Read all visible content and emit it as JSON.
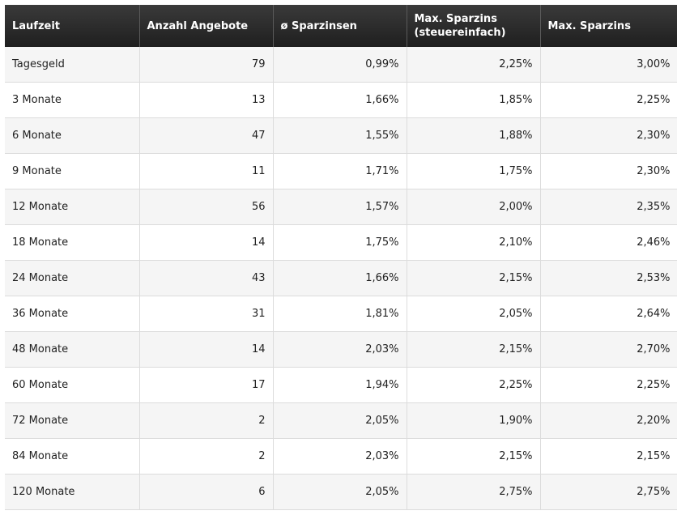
{
  "table": {
    "headers": {
      "laufzeit": "Laufzeit",
      "anzahl": "Anzahl Angebote",
      "avg": "ø Sparzinsen",
      "max_tax": "Max. Sparzins (steuereinfach)",
      "max": "Max. Sparzins"
    },
    "rows": [
      {
        "laufzeit": "Tagesgeld",
        "anzahl": "79",
        "avg": "0,99%",
        "max_tax": "2,25%",
        "max": "3,00%"
      },
      {
        "laufzeit": "3 Monate",
        "anzahl": "13",
        "avg": "1,66%",
        "max_tax": "1,85%",
        "max": "2,25%"
      },
      {
        "laufzeit": "6 Monate",
        "anzahl": "47",
        "avg": "1,55%",
        "max_tax": "1,88%",
        "max": "2,30%"
      },
      {
        "laufzeit": "9 Monate",
        "anzahl": "11",
        "avg": "1,71%",
        "max_tax": "1,75%",
        "max": "2,30%"
      },
      {
        "laufzeit": "12 Monate",
        "anzahl": "56",
        "avg": "1,57%",
        "max_tax": "2,00%",
        "max": "2,35%"
      },
      {
        "laufzeit": "18 Monate",
        "anzahl": "14",
        "avg": "1,75%",
        "max_tax": "2,10%",
        "max": "2,46%"
      },
      {
        "laufzeit": "24 Monate",
        "anzahl": "43",
        "avg": "1,66%",
        "max_tax": "2,15%",
        "max": "2,53%"
      },
      {
        "laufzeit": "36 Monate",
        "anzahl": "31",
        "avg": "1,81%",
        "max_tax": "2,05%",
        "max": "2,64%"
      },
      {
        "laufzeit": "48 Monate",
        "anzahl": "14",
        "avg": "2,03%",
        "max_tax": "2,15%",
        "max": "2,70%"
      },
      {
        "laufzeit": "60 Monate",
        "anzahl": "17",
        "avg": "1,94%",
        "max_tax": "2,25%",
        "max": "2,25%"
      },
      {
        "laufzeit": "72 Monate",
        "anzahl": "2",
        "avg": "2,05%",
        "max_tax": "1,90%",
        "max": "2,20%"
      },
      {
        "laufzeit": "84 Monate",
        "anzahl": "2",
        "avg": "2,03%",
        "max_tax": "2,15%",
        "max": "2,15%"
      },
      {
        "laufzeit": "120 Monate",
        "anzahl": "6",
        "avg": "2,05%",
        "max_tax": "2,75%",
        "max": "2,75%"
      }
    ]
  }
}
